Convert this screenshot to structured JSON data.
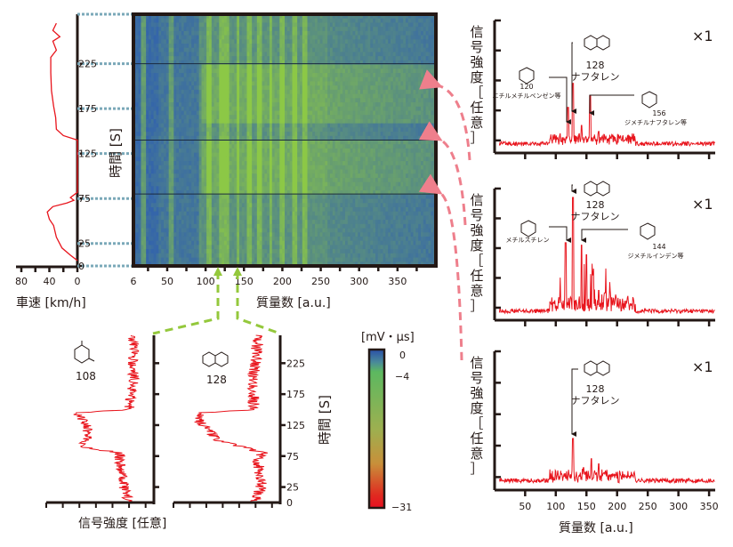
{
  "chart_data": [
    {
      "type": "line",
      "name": "vehicle-speed",
      "xlabel": "車速 [km/h]",
      "x_ticks": [
        "80",
        "40",
        "0"
      ],
      "xlim": [
        80,
        0
      ],
      "ylim": [
        0,
        280
      ],
      "series": [
        {
          "name": "speed",
          "points": [
            [
              0,
              6
            ],
            [
              10,
              12
            ],
            [
              22,
              20
            ],
            [
              30,
              32
            ],
            [
              34,
              45
            ],
            [
              40,
              52
            ],
            [
              43,
              60
            ],
            [
              35,
              66
            ],
            [
              15,
              70
            ],
            [
              5,
              73
            ],
            [
              10,
              76
            ],
            [
              0,
              82
            ],
            [
              0,
              140
            ],
            [
              20,
              145
            ],
            [
              30,
              152
            ],
            [
              31,
              165
            ],
            [
              34,
              178
            ],
            [
              37,
              195
            ],
            [
              38,
              215
            ],
            [
              38,
              232
            ],
            [
              30,
              240
            ],
            [
              35,
              250
            ],
            [
              25,
              255
            ],
            [
              35,
              262
            ],
            [
              30,
              270
            ]
          ]
        }
      ]
    },
    {
      "type": "heatmap",
      "name": "mass-spectrogram",
      "xlabel": "質量数 [a.u.]",
      "ylabel": "時間 [S]",
      "x_ticks": [
        "6",
        "50",
        "100",
        "150",
        "200",
        "250",
        "300",
        "350"
      ],
      "y_ticks": [
        "0",
        "25",
        "75",
        "125",
        "175",
        "225"
      ],
      "xlim": [
        6,
        400
      ],
      "ylim": [
        0,
        280
      ],
      "bright_bands_mz": [
        20,
        56,
        105,
        120,
        128,
        142,
        156,
        170,
        185,
        200,
        215,
        230
      ],
      "high_signal_time_ranges": [
        [
          80,
          140
        ],
        [
          160,
          225
        ]
      ]
    },
    {
      "type": "colorbar",
      "name": "intensity-scale",
      "unit": "[mV・μs]",
      "ticks": [
        "0",
        "−4",
        "−31"
      ],
      "colors": [
        "#2a50a8",
        "#5cb860",
        "#c0a040",
        "#e02020"
      ]
    },
    {
      "type": "line",
      "name": "ion-trace-108",
      "compound_label": "108",
      "xlabel": "信号強度 [任意]",
      "ylim": [
        0,
        280
      ],
      "profile": [
        [
          0,
          0.2
        ],
        [
          20,
          0.25
        ],
        [
          60,
          0.3
        ],
        [
          80,
          0.3
        ],
        [
          90,
          0.75
        ],
        [
          110,
          0.65
        ],
        [
          130,
          0.7
        ],
        [
          145,
          0.8
        ],
        [
          150,
          0.2
        ],
        [
          200,
          0.15
        ],
        [
          270,
          0.15
        ]
      ]
    },
    {
      "type": "line",
      "name": "ion-trace-128",
      "compound_label": "128",
      "ylabel": "時間 [S]",
      "y_ticks": [
        "0",
        "25",
        "75",
        "125",
        "175",
        "225"
      ],
      "ylim": [
        0,
        280
      ],
      "profile": [
        [
          0,
          0.2
        ],
        [
          25,
          0.12
        ],
        [
          70,
          0.15
        ],
        [
          80,
          0.1
        ],
        [
          100,
          0.55
        ],
        [
          130,
          0.75
        ],
        [
          145,
          0.75
        ],
        [
          150,
          0.2
        ],
        [
          200,
          0.2
        ],
        [
          270,
          0.15
        ]
      ]
    },
    {
      "type": "line",
      "name": "spectrum-top",
      "scale_label": "×1",
      "ylabel": "信号強度［任意］",
      "xlim": [
        6,
        360
      ],
      "peaks": [
        [
          120,
          0.35
        ],
        [
          128,
          0.55
        ],
        [
          156,
          0.45
        ],
        [
          142,
          0.2
        ],
        [
          170,
          0.15
        ]
      ],
      "annotations": [
        {
          "mz": "120",
          "name": "エチルメチルベンゼン等"
        },
        {
          "mz": "128",
          "name": "ナフタレン"
        },
        {
          "mz": "156",
          "name": "ジメチルナフタレン等"
        }
      ]
    },
    {
      "type": "line",
      "name": "spectrum-middle",
      "scale_label": "×1",
      "ylabel": "信号強度［任意］",
      "xlim": [
        6,
        360
      ],
      "peaks": [
        [
          116,
          0.62
        ],
        [
          128,
          1.0
        ],
        [
          142,
          0.6
        ],
        [
          150,
          0.52
        ],
        [
          160,
          0.35
        ],
        [
          170,
          0.22
        ],
        [
          180,
          0.2
        ]
      ],
      "annotations": [
        {
          "mz": "",
          "name": "メチルスチレン"
        },
        {
          "mz": "128",
          "name": "ナフタレン"
        },
        {
          "mz": "144",
          "name": "ジメチルインデン等"
        }
      ]
    },
    {
      "type": "line",
      "name": "spectrum-bottom",
      "scale_label": "×1",
      "ylabel": "信号強度［任意］",
      "xlabel": "質量数 [a.u.]",
      "x_ticks": [
        "50",
        "100",
        "150",
        "200",
        "250",
        "300",
        "350"
      ],
      "xlim": [
        6,
        360
      ],
      "peaks": [
        [
          128,
          0.38
        ],
        [
          158,
          0.22
        ],
        [
          170,
          0.18
        ],
        [
          145,
          0.15
        ]
      ],
      "annotations": [
        {
          "mz": "128",
          "name": "ナフタレン"
        }
      ]
    }
  ]
}
